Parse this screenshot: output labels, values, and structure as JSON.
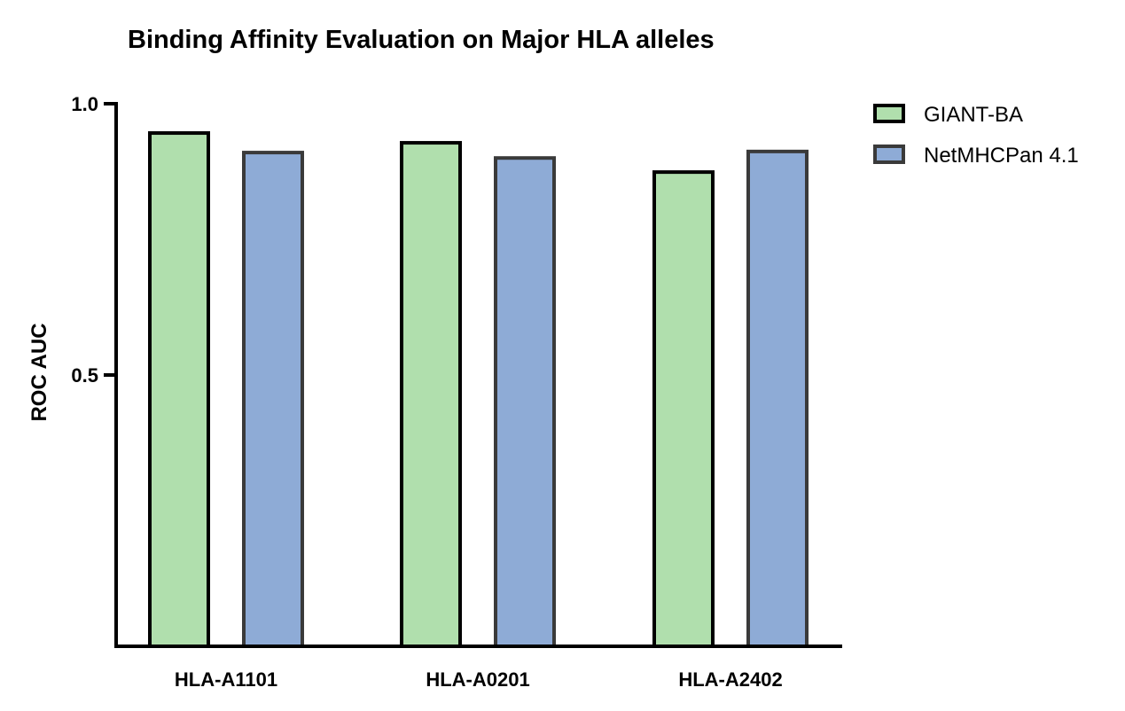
{
  "chart_data": {
    "type": "bar",
    "title": "Binding Affinity Evaluation on Major HLA alleles",
    "xlabel": "",
    "ylabel": "ROC AUC",
    "categories": [
      "HLA-A1101",
      "HLA-A0201",
      "HLA-A2402"
    ],
    "series": [
      {
        "name": "GIANT-BA",
        "values": [
          0.946,
          0.928,
          0.874
        ],
        "color": "#b0dfad",
        "stroke": "#000000"
      },
      {
        "name": "NetMHCPan 4.1",
        "values": [
          0.91,
          0.9,
          0.912
        ],
        "color": "#8eabd6",
        "stroke": "#3a3a3a"
      }
    ],
    "ylim": [
      0.0,
      1.0
    ],
    "yticks": [
      {
        "value": 1.0,
        "label": "1.0"
      },
      {
        "value": 0.5,
        "label": "0.5"
      }
    ],
    "grid": false,
    "legend_position": "top-right"
  }
}
